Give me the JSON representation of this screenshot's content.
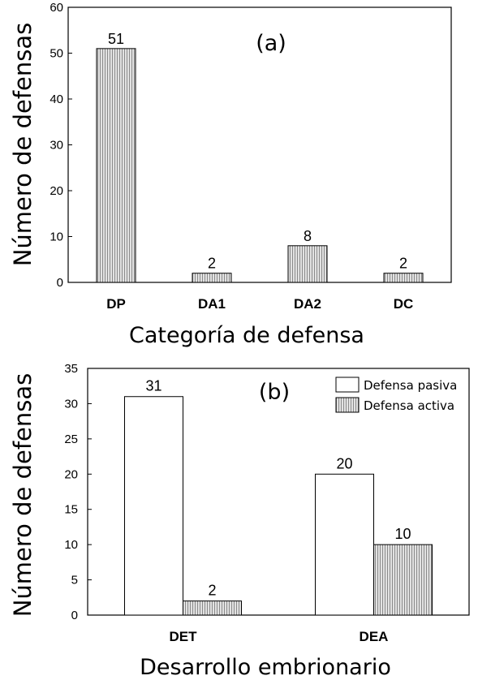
{
  "chart_data": [
    {
      "type": "bar",
      "panel_label": "(a)",
      "categories": [
        "DP",
        "DA1",
        "DA2",
        "DC"
      ],
      "values": [
        51,
        2,
        8,
        2
      ],
      "data_labels": [
        "51",
        "2",
        "8",
        "2"
      ],
      "xlabel": "Categoría de defensa",
      "ylabel": "Número de defensas",
      "ylim": [
        0,
        60
      ],
      "yticks": [
        0,
        10,
        20,
        30,
        40,
        50,
        60
      ],
      "ytick_labels": [
        "0",
        "10",
        "20",
        "30",
        "40",
        "50",
        "60"
      ],
      "grid": false,
      "bar_fill": "hatched-gray"
    },
    {
      "type": "bar",
      "panel_label": "(b)",
      "categories": [
        "DET",
        "DEA"
      ],
      "series": [
        {
          "name": "Defensa pasiva",
          "values": [
            31,
            20
          ],
          "data_labels": [
            "31",
            "20"
          ],
          "fill": "white"
        },
        {
          "name": "Defensa activa",
          "values": [
            2,
            10
          ],
          "data_labels": [
            "2",
            "10"
          ],
          "fill": "hatched-gray"
        }
      ],
      "xlabel": "Desarrollo embrionario",
      "ylabel": "Número de defensas",
      "ylim": [
        0,
        35
      ],
      "yticks": [
        0,
        5,
        10,
        15,
        20,
        25,
        30,
        35
      ],
      "ytick_labels": [
        "0",
        "5",
        "10",
        "15",
        "20",
        "25",
        "30",
        "35"
      ],
      "grid": false,
      "legend_position": "top-right"
    }
  ]
}
